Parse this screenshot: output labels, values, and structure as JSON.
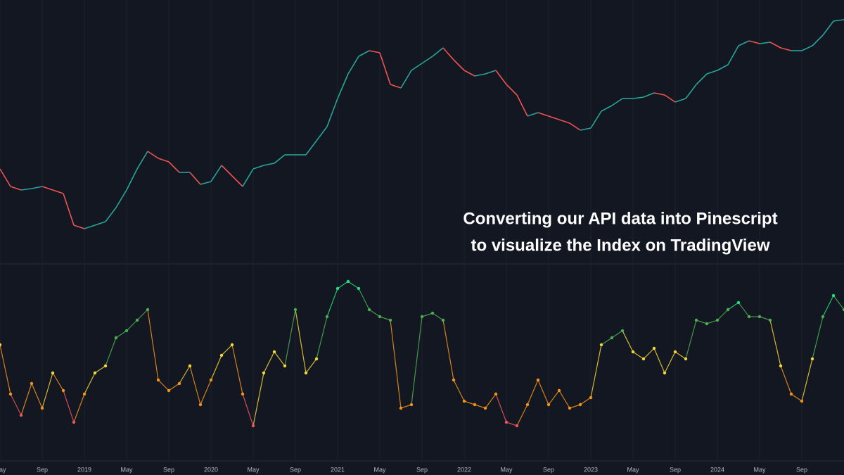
{
  "chart_data": {
    "type": "line",
    "annotation": [
      "Converting our API data into Pinescript",
      "to visualize the Index on TradingView"
    ],
    "categories": [
      "May",
      null,
      null,
      null,
      "Sep",
      null,
      null,
      null,
      "2019",
      null,
      null,
      null,
      "May",
      null,
      null,
      null,
      "Sep",
      null,
      null,
      null,
      "2020",
      null,
      null,
      null,
      "May",
      null,
      null,
      null,
      "Sep",
      null,
      null,
      null,
      "2021",
      null,
      null,
      null,
      "May",
      null,
      null,
      null,
      "Sep",
      null,
      null,
      null,
      "2022",
      null,
      null,
      null,
      "May",
      null,
      null,
      null,
      "Sep",
      null,
      null,
      null,
      "2023",
      null,
      null,
      null,
      "May",
      null,
      null,
      null,
      "Sep",
      null,
      null,
      null,
      "2024",
      null,
      null,
      null,
      "May",
      null,
      null,
      null,
      "Sep",
      null,
      null,
      null,
      null
    ],
    "ylim": [
      0,
      340
    ],
    "y2lim": [
      0,
      240
    ],
    "series": [
      {
        "up_color": "#26a69a",
        "down_color": "#ef5350",
        "values": [
          120,
          95,
          90,
          92,
          95,
          90,
          85,
          40,
          35,
          40,
          45,
          65,
          90,
          120,
          145,
          135,
          130,
          115,
          115,
          98,
          102,
          125,
          110,
          95,
          120,
          125,
          128,
          140,
          140,
          140,
          160,
          180,
          220,
          255,
          280,
          288,
          285,
          240,
          235,
          260,
          270,
          280,
          292,
          275,
          260,
          252,
          255,
          260,
          240,
          225,
          195,
          200,
          195,
          190,
          185,
          175,
          178,
          202,
          210,
          220,
          220,
          222,
          228,
          225,
          215,
          220,
          240,
          255,
          260,
          268,
          295,
          302,
          298,
          300,
          292,
          288,
          288,
          295,
          310,
          330,
          332
        ]
      },
      {
        "axis": "y2",
        "color_stops": [
          "#f0565c",
          "#f7931a",
          "#f3d735",
          "#4caf50",
          "#22e07f"
        ],
        "values": [
          140,
          70,
          40,
          85,
          50,
          100,
          75,
          30,
          70,
          100,
          110,
          150,
          160,
          175,
          190,
          90,
          75,
          85,
          110,
          55,
          90,
          125,
          140,
          70,
          25,
          100,
          130,
          110,
          190,
          100,
          120,
          180,
          220,
          230,
          220,
          190,
          180,
          175,
          50,
          55,
          180,
          185,
          175,
          90,
          60,
          55,
          50,
          70,
          30,
          25,
          55,
          90,
          55,
          75,
          50,
          55,
          65,
          140,
          150,
          160,
          130,
          120,
          135,
          100,
          130,
          120,
          175,
          170,
          175,
          190,
          200,
          180,
          180,
          175,
          110,
          70,
          60,
          120,
          180,
          210,
          190
        ]
      }
    ]
  }
}
